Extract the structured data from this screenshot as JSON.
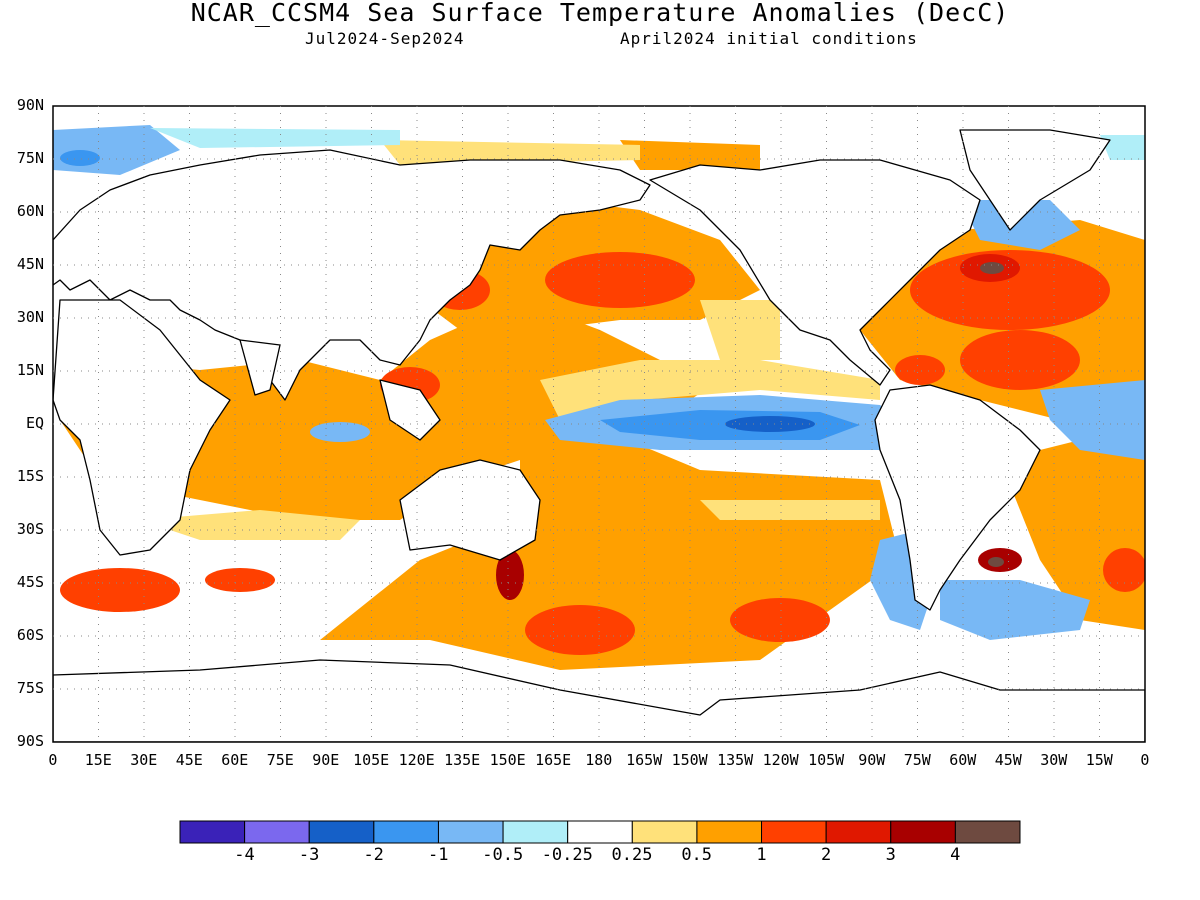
{
  "title": "NCAR_CCSM4 Sea Surface Temperature Anomalies (DecC)",
  "subtitle_left": "Jul2024-Sep2024",
  "subtitle_right": "April2024 initial conditions",
  "lat_labels": [
    "90N",
    "75N",
    "60N",
    "45N",
    "30N",
    "15N",
    "EQ",
    "15S",
    "30S",
    "45S",
    "60S",
    "75S",
    "90S"
  ],
  "lon_labels": [
    "0",
    "15E",
    "30E",
    "45E",
    "60E",
    "75E",
    "90E",
    "105E",
    "120E",
    "135E",
    "150E",
    "165E",
    "180",
    "165W",
    "150W",
    "135W",
    "120W",
    "105W",
    "90W",
    "75W",
    "60W",
    "45W",
    "30W",
    "15W",
    "0"
  ],
  "colorbar": {
    "colors": [
      "#3a22b8",
      "#7b68ee",
      "#1560c8",
      "#3a96f0",
      "#78b8f5",
      "#b0eef8",
      "#ffffff",
      "#ffe17a",
      "#ffa000",
      "#ff4000",
      "#e01800",
      "#a80000",
      "#6e4a40"
    ],
    "labels": [
      "-4",
      "-3",
      "-2",
      "-1",
      "-0.5",
      "-0.25",
      "0.25",
      "0.5",
      "1",
      "2",
      "3",
      "4"
    ]
  }
}
